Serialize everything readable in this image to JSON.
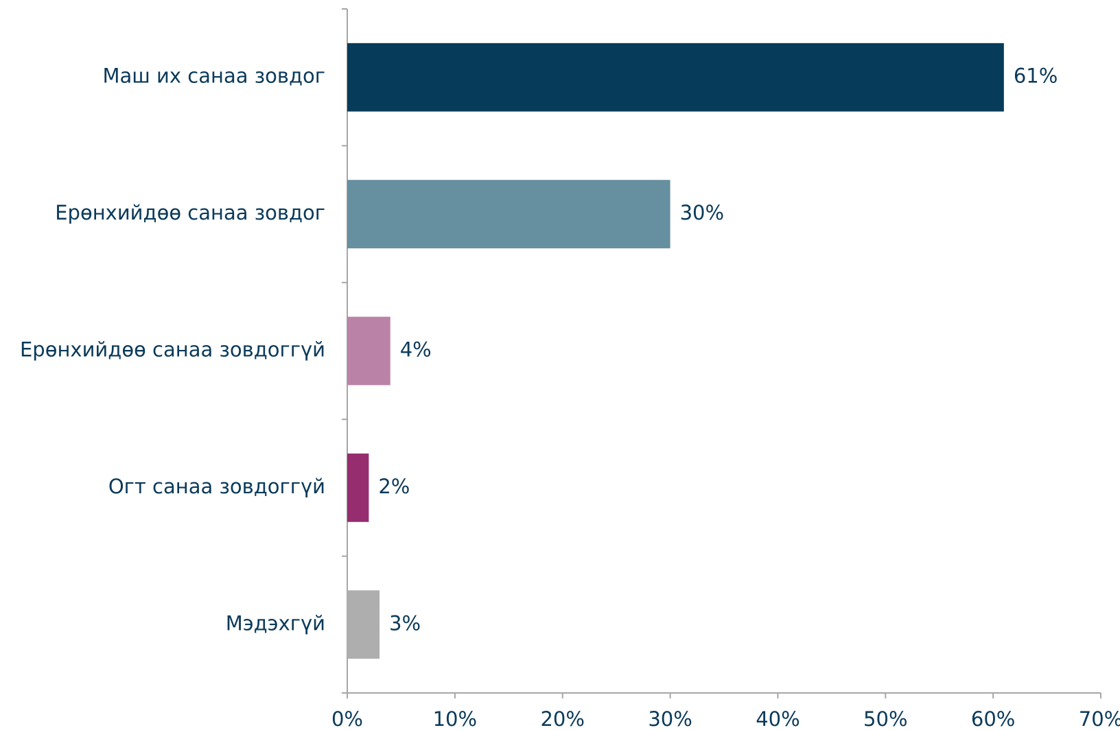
{
  "chart_data": {
    "type": "bar",
    "orientation": "horizontal",
    "categories": [
      "Маш их санаа зовдог",
      "Ерөнхийдөө санаа зовдог",
      "Ерөнхийдөө санаа зовдоггүй",
      "Огт санаа зовдоггүй",
      "Мэдэхгүй"
    ],
    "values": [
      61,
      30,
      4,
      2,
      3
    ],
    "value_labels": [
      "61%",
      "30%",
      "4%",
      "2%",
      "3%"
    ],
    "colors": [
      "#063c5a",
      "#668fa0",
      "#bb82a8",
      "#952d6f",
      "#aeaeaf"
    ],
    "xlim": [
      0,
      70
    ],
    "xticks": [
      {
        "value": 0,
        "label": "0%"
      },
      {
        "value": 10,
        "label": "10%"
      },
      {
        "value": 20,
        "label": "20%"
      },
      {
        "value": 30,
        "label": "30%"
      },
      {
        "value": 40,
        "label": "40%"
      },
      {
        "value": 50,
        "label": "50%"
      },
      {
        "value": 60,
        "label": "60%"
      },
      {
        "value": 70,
        "label": "70%"
      }
    ],
    "grid": false
  }
}
